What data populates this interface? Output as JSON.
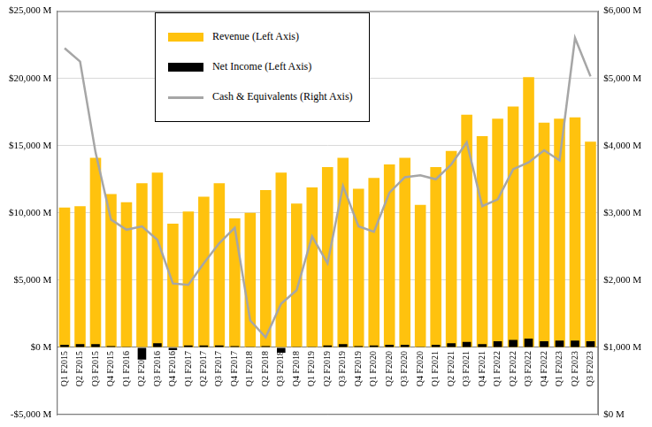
{
  "chart_data": {
    "type": "bar",
    "categories": [
      "Q1 F2015",
      "Q2 F2015",
      "Q3 F2015",
      "Q4 F2015",
      "Q1 F2016",
      "Q2 F2016",
      "Q3 F2016",
      "Q4 F2016",
      "Q1 F2017",
      "Q2 F2017",
      "Q3 F2017",
      "Q4 F2017",
      "Q1 F2018",
      "Q2 F2018",
      "Q3 F2018",
      "Q4 F2018",
      "Q1 F2019",
      "Q2 F2019",
      "Q3 F2019",
      "Q4 F2019",
      "Q1 F2020",
      "Q2 F2020",
      "Q3 F2020",
      "Q4 F2020",
      "Q1 F2021",
      "Q2 F2021",
      "Q3 F2021",
      "Q4 F2021",
      "Q1 F2022",
      "Q2 F2022",
      "Q3 F2022",
      "Q4 F2022",
      "Q1 F2023",
      "Q2 F2023",
      "Q3 F2023"
    ],
    "series": [
      {
        "name": "Revenue (Left Axis)",
        "color": "#ffc20e",
        "values": [
          10400,
          10500,
          14100,
          11400,
          10800,
          12200,
          13000,
          9200,
          10100,
          11200,
          12200,
          9600,
          10000,
          11700,
          13000,
          10700,
          11900,
          13400,
          14100,
          11800,
          12600,
          13600,
          14100,
          10600,
          13400,
          14600,
          17300,
          15700,
          17000,
          17900,
          20100,
          16700,
          17000,
          17100,
          15300
        ]
      },
      {
        "name": "Net Income (Left Axis)",
        "color": "#000000",
        "values": [
          200,
          250,
          250,
          100,
          50,
          -900,
          300,
          -200,
          150,
          150,
          150,
          100,
          50,
          100,
          -400,
          50,
          50,
          150,
          250,
          100,
          150,
          200,
          200,
          50,
          200,
          300,
          400,
          250,
          450,
          550,
          650,
          450,
          500,
          500,
          450
        ]
      },
      {
        "name": "Cash & Equivalents (Right Axis)",
        "color": "#a6a6a6",
        "type": "line",
        "axis": "y2",
        "values": [
          5450,
          5250,
          3900,
          2900,
          2750,
          2800,
          2600,
          1950,
          1930,
          2250,
          2550,
          2780,
          1400,
          1150,
          1650,
          1850,
          2650,
          2250,
          3400,
          2800,
          2720,
          3300,
          3530,
          3560,
          3500,
          3720,
          4050,
          3100,
          3200,
          3650,
          3750,
          3930,
          3780,
          5600,
          5030
        ]
      }
    ],
    "ylim": [
      -5000,
      25000
    ],
    "yticks": [
      {
        "value": -5000,
        "label": "-$5,000 M"
      },
      {
        "value": 0,
        "label": "$0 M"
      },
      {
        "value": 5000,
        "label": "$5,000 M"
      },
      {
        "value": 10000,
        "label": "$10,000 M"
      },
      {
        "value": 15000,
        "label": "$15,000 M"
      },
      {
        "value": 20000,
        "label": "$20,000 M"
      },
      {
        "value": 25000,
        "label": "$25,000 M"
      }
    ],
    "y2lim": [
      0,
      6000
    ],
    "y2ticks": [
      {
        "value": 0,
        "label": "$0 M"
      },
      {
        "value": 1000,
        "label": "$1,000 M"
      },
      {
        "value": 2000,
        "label": "$2,000 M"
      },
      {
        "value": 3000,
        "label": "$3,000 M"
      },
      {
        "value": 4000,
        "label": "$4,000 M"
      },
      {
        "value": 5000,
        "label": "$5,000 M"
      },
      {
        "value": 6000,
        "label": "$6,000 M"
      }
    ],
    "grid": true,
    "legend": "upper center"
  }
}
